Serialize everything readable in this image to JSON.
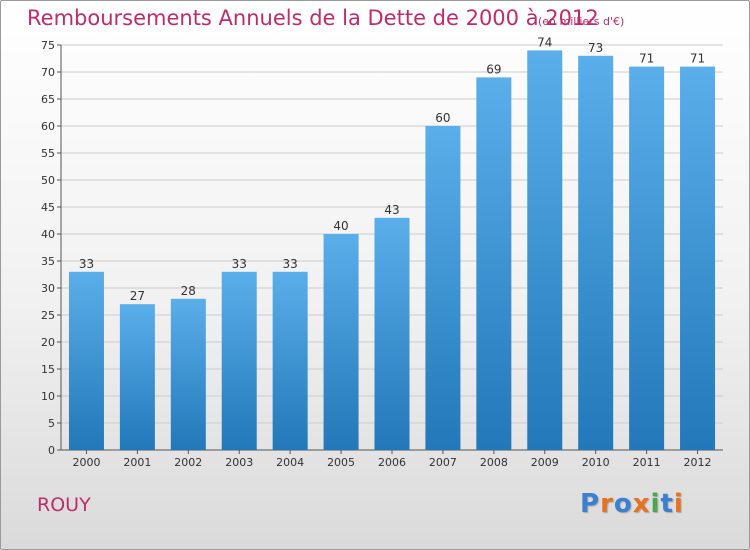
{
  "title": "Remboursements Annuels de la Dette de 2000 à 2012",
  "unit": "(en milliers d'€)",
  "footer_label": "ROUY",
  "logo": {
    "text": "Proxiti",
    "letters": [
      "P",
      "r",
      "o",
      "x",
      "i",
      "t",
      "i"
    ],
    "colors": [
      "#3b7fd0",
      "#e8731e",
      "#3b7fd0",
      "#e8731e",
      "#4aa84a",
      "#3b7fd0",
      "#e8731e"
    ]
  },
  "colors": {
    "title": "#c22b6b",
    "bar_top": "#5aaeea",
    "bar_bottom": "#2278b8",
    "grid": "#cccccc"
  },
  "chart_data": {
    "type": "bar",
    "categories": [
      "2000",
      "2001",
      "2002",
      "2003",
      "2004",
      "2005",
      "2006",
      "2007",
      "2008",
      "2009",
      "2010",
      "2011",
      "2012"
    ],
    "values": [
      33,
      27,
      28,
      33,
      33,
      40,
      43,
      60,
      69,
      74,
      73,
      71,
      71
    ],
    "title": "Remboursements Annuels de la Dette de 2000 à 2012",
    "ylim": [
      0,
      75
    ],
    "yticks": [
      0,
      5,
      10,
      15,
      20,
      25,
      30,
      35,
      40,
      45,
      50,
      55,
      60,
      65,
      70,
      75
    ],
    "grid": true
  }
}
